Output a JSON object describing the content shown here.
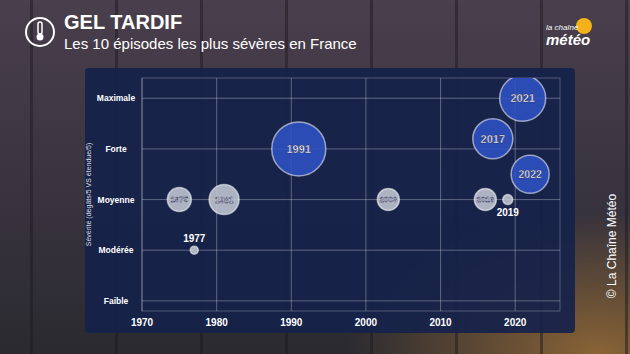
{
  "chart_data": {
    "type": "scatter",
    "title": "GEL TARDIF",
    "subtitle": "Les 10 épisodes les plus sévères en France",
    "y_label": "Sévérité (dégâts/5 VS étendue/5)",
    "x": [
      1975,
      1977,
      1981,
      1991,
      2003,
      2016,
      2017,
      2019,
      2021,
      2022
    ],
    "values": [
      3,
      2,
      3,
      4,
      3,
      3,
      4.2,
      3,
      5,
      3.5
    ],
    "sizes": [
      12,
      4,
      15,
      27,
      11,
      11,
      20,
      5,
      23,
      19
    ],
    "labels": [
      "1975",
      "1977",
      "1981",
      "1991",
      "2003",
      "2016",
      "2017",
      "2019",
      "2021",
      "2022"
    ],
    "colors": [
      "#c3c7d3",
      "#c3c7d3",
      "#c3c7d3",
      "#2f52c4",
      "#c3c7d3",
      "#c3c7d3",
      "#2f52c4",
      "#c3c7d3",
      "#2f52c4",
      "#2f52c4"
    ],
    "marker": "circle",
    "xlim": [
      1970,
      2026
    ],
    "xticks": [
      1970,
      1980,
      1990,
      2000,
      2010,
      2020
    ],
    "ylim": [
      0.8,
      5.4
    ],
    "yticks": [
      {
        "value": 1,
        "label": "Faible"
      },
      {
        "value": 2,
        "label": "Modérée"
      },
      {
        "value": 3,
        "label": "Moyenne"
      },
      {
        "value": 4,
        "label": "Forte"
      },
      {
        "value": 5,
        "label": "Maximale"
      }
    ],
    "grid": true
  },
  "logo": {
    "line1": "la chaîne",
    "line2": "météo"
  },
  "copyright": "© La Chaîne Météo"
}
